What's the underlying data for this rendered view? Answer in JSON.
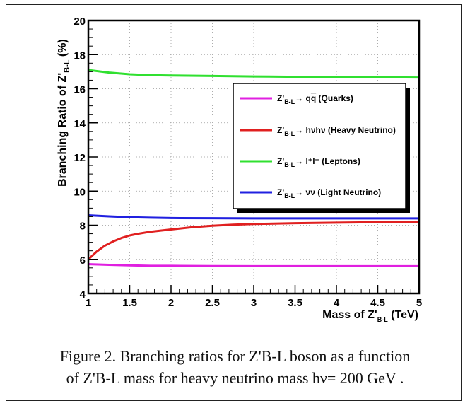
{
  "chart_data": {
    "type": "line",
    "xlabel": "Mass of Z'B-L (TeV)",
    "ylabel": "Branching Ratio of Z'B-L (%)",
    "xlim": [
      1,
      5
    ],
    "ylim": [
      4,
      20
    ],
    "x_ticks": [
      "1",
      "1.5",
      "2",
      "2.5",
      "3",
      "3.5",
      "4",
      "4.5",
      "5"
    ],
    "y_ticks": [
      "4",
      "6",
      "8",
      "10",
      "12",
      "14",
      "16",
      "18",
      "20"
    ],
    "legend_placement": "right",
    "grid": true,
    "series": [
      {
        "name": "Z'B-L→ qq̄ (Quarks)",
        "color": "#e020e0",
        "x": [
          1,
          1.25,
          1.5,
          1.75,
          2,
          2.5,
          3,
          3.5,
          4,
          4.5,
          5
        ],
        "y": [
          5.72,
          5.68,
          5.65,
          5.62,
          5.62,
          5.61,
          5.6,
          5.6,
          5.6,
          5.6,
          5.6
        ]
      },
      {
        "name": "Z'B-L→ hνhν (Heavy Neutrino)",
        "color": "#e02020",
        "x": [
          1,
          1.1,
          1.2,
          1.3,
          1.4,
          1.5,
          1.6,
          1.75,
          2,
          2.25,
          2.5,
          2.75,
          3,
          3.5,
          4,
          4.5,
          5
        ],
        "y": [
          6.0,
          6.45,
          6.8,
          7.05,
          7.25,
          7.4,
          7.5,
          7.62,
          7.75,
          7.88,
          7.97,
          8.03,
          8.07,
          8.12,
          8.15,
          8.18,
          8.2
        ]
      },
      {
        "name": "Z'B-L→ l⁺l⁻ (Leptons)",
        "color": "#30e030",
        "x": [
          1,
          1.25,
          1.5,
          1.75,
          2,
          2.5,
          3,
          3.5,
          4,
          4.5,
          5
        ],
        "y": [
          17.1,
          16.95,
          16.85,
          16.8,
          16.78,
          16.75,
          16.72,
          16.7,
          16.68,
          16.67,
          16.66
        ]
      },
      {
        "name": "Z'B-L→ νν (Light Neutrino)",
        "color": "#2020e0",
        "x": [
          1,
          1.25,
          1.5,
          1.75,
          2,
          2.5,
          3,
          3.5,
          4,
          4.5,
          5
        ],
        "y": [
          8.58,
          8.52,
          8.47,
          8.44,
          8.42,
          8.41,
          8.4,
          8.4,
          8.4,
          8.4,
          8.4
        ]
      }
    ]
  },
  "caption": {
    "line1": "Figure 2. Branching ratios for Z'B-L boson as a function",
    "line2": "of Z'B-L mass for heavy neutrino mass hν= 200 GeV ."
  }
}
